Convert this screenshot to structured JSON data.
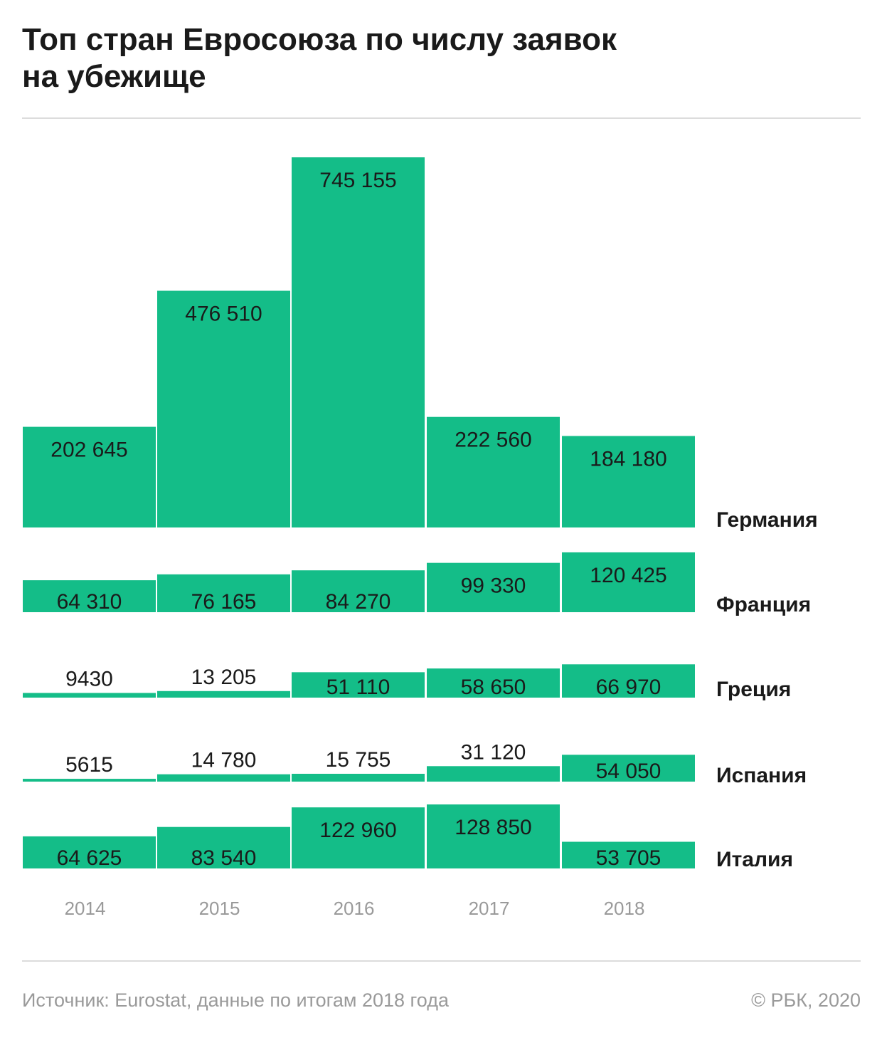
{
  "title_lines": [
    "Топ стран Евросоюза по числу заявок",
    "на убежище"
  ],
  "footer": {
    "source": "Источник: Eurostat, данные по итогам 2018 года",
    "copyright": "© РБК, 2020"
  },
  "colors": {
    "bar": "#14bd88",
    "label": "#1a1a1a",
    "year": "#9a9a9a"
  },
  "chart_data": {
    "type": "bar",
    "categories": [
      "2014",
      "2015",
      "2016",
      "2017",
      "2018"
    ],
    "series": [
      {
        "name": "Германия",
        "values": [
          202645,
          476510,
          745155,
          222560,
          184180
        ],
        "labels": [
          "202 645",
          "476 510",
          "745 155",
          "222 560",
          "184 180"
        ]
      },
      {
        "name": "Франция",
        "values": [
          64310,
          76165,
          84270,
          99330,
          120425
        ],
        "labels": [
          "64 310",
          "76 165",
          "84 270",
          "99 330",
          "120 425"
        ]
      },
      {
        "name": "Греция",
        "values": [
          9430,
          13205,
          51110,
          58650,
          66970
        ],
        "labels": [
          "9430",
          "13 205",
          "51 110",
          "58 650",
          "66 970"
        ]
      },
      {
        "name": "Испания",
        "values": [
          5615,
          14780,
          15755,
          31120,
          54050
        ],
        "labels": [
          "5615",
          "14 780",
          "15 755",
          "31 120",
          "54 050"
        ]
      },
      {
        "name": "Италия",
        "values": [
          64625,
          83540,
          122960,
          128850,
          53705
        ],
        "labels": [
          "64 625",
          "83 540",
          "122 960",
          "128 850",
          "53 705"
        ]
      }
    ]
  }
}
